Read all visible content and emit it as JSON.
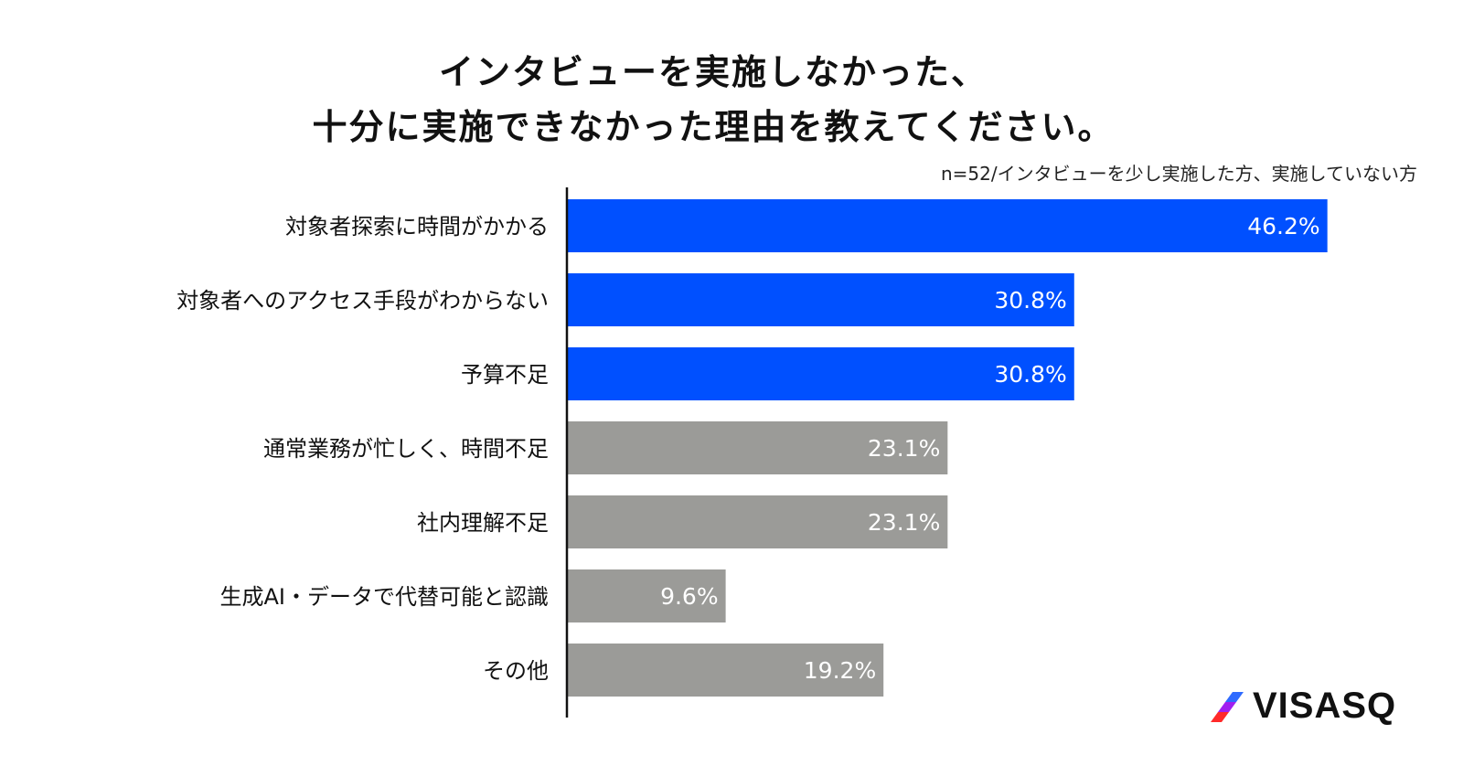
{
  "chart_data": {
    "type": "bar",
    "orientation": "horizontal",
    "title": [
      "インタビューを実施しなかった、",
      "十分に実施できなかった理由を教えてください。"
    ],
    "note": "n=52/インタビューを少し実施した方、実施していない方",
    "categories": [
      "対象者探索に時間がかかる",
      "対象者へのアクセス手段がわからない",
      "予算不足",
      "通常業務が忙しく、時間不足",
      "社内理解不足",
      "生成AI・データで代替可能と認識",
      "その他"
    ],
    "values": [
      46.2,
      30.8,
      30.8,
      23.1,
      23.1,
      9.6,
      19.2
    ],
    "labels": [
      "46.2%",
      "30.8%",
      "30.8%",
      "23.1%",
      "23.1%",
      "9.6%",
      "19.2%"
    ],
    "highlight": [
      true,
      true,
      true,
      false,
      false,
      false,
      false
    ],
    "colors": {
      "highlight": "#0050FF",
      "default": "#9B9B98"
    },
    "xlim": [
      0,
      50
    ],
    "grid": false
  },
  "logo": {
    "text": "VISASQ"
  }
}
